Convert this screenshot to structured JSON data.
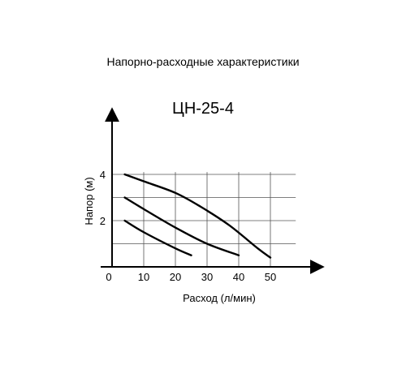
{
  "page_title": "Напорно-расходные характеристики",
  "chart_data": {
    "type": "line",
    "title": "ЦН-25-4",
    "xlabel": "Расход (л/мин)",
    "ylabel": "Напор (м)",
    "xlim": [
      0,
      58
    ],
    "ylim": [
      0,
      6
    ],
    "grid": true,
    "x_ticks": [
      0,
      10,
      20,
      30,
      40,
      50
    ],
    "y_ticks": [
      2,
      4
    ],
    "series": [
      {
        "x": [
          4,
          10,
          20,
          28,
          37,
          46,
          50
        ],
        "y": [
          4.0,
          3.7,
          3.2,
          2.6,
          1.8,
          0.8,
          0.4
        ]
      },
      {
        "x": [
          4,
          10,
          20,
          30,
          40
        ],
        "y": [
          3.0,
          2.5,
          1.7,
          1.0,
          0.5
        ]
      },
      {
        "x": [
          4,
          10,
          20,
          25
        ],
        "y": [
          2.0,
          1.5,
          0.8,
          0.5
        ]
      }
    ]
  }
}
